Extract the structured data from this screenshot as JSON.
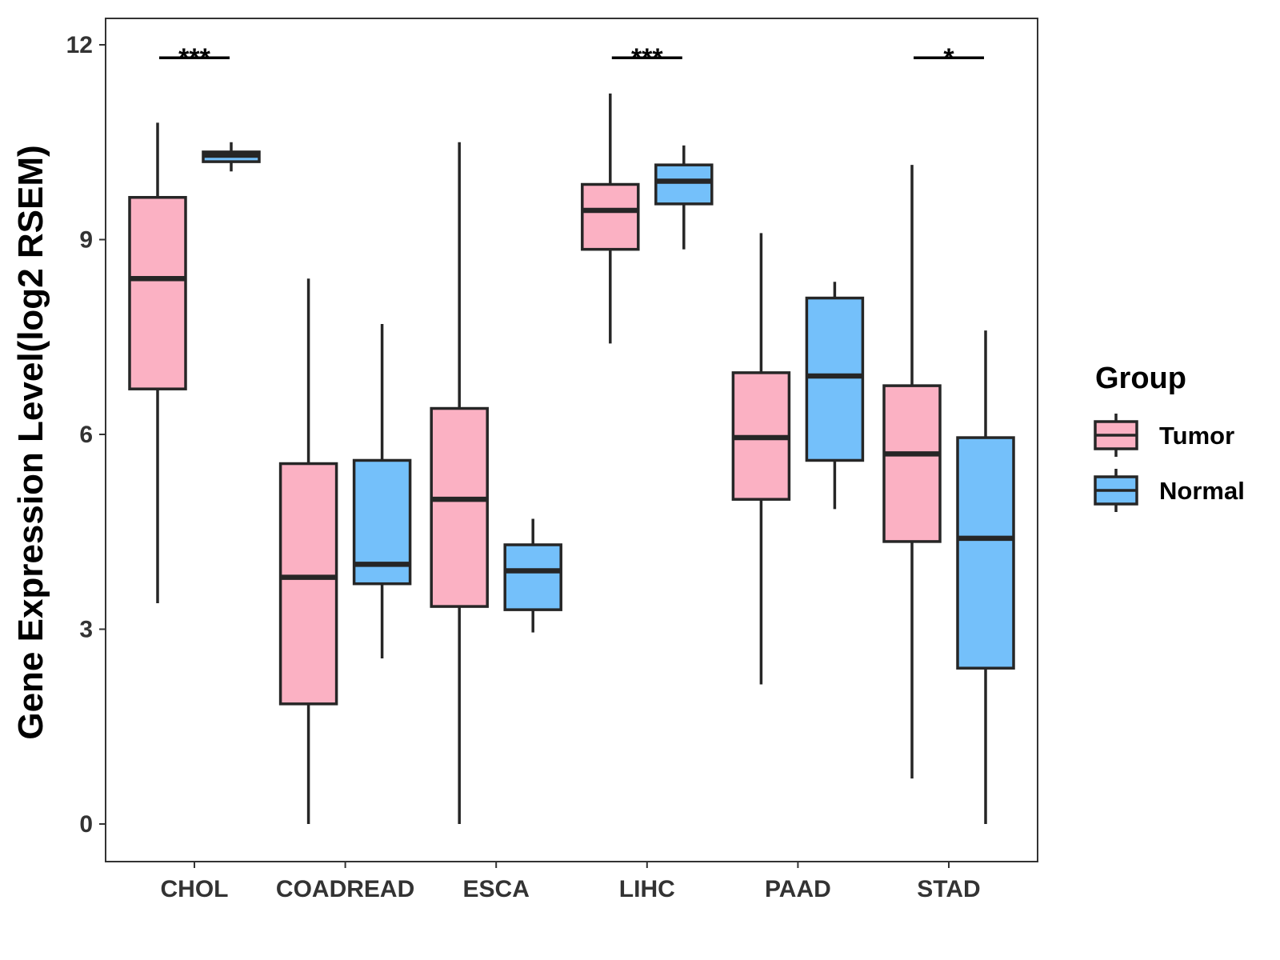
{
  "chart_data": {
    "type": "boxplot",
    "title": "",
    "xlabel": "",
    "ylabel": "Gene Expression Level(log2 RSEM)",
    "ylim": [
      -0.5,
      12.5
    ],
    "yticks": [
      0,
      3,
      6,
      9,
      12
    ],
    "ytick_labels": [
      "0",
      "3",
      "6",
      "9",
      "12"
    ],
    "categories": [
      "CHOL",
      "COADREAD",
      "ESCA",
      "LIHC",
      "PAAD",
      "STAD"
    ],
    "legend": {
      "title": "Group",
      "position": "right",
      "entries": [
        {
          "name": "Tumor",
          "color": "#FBB1C3"
        },
        {
          "name": "Normal",
          "color": "#74C0FA"
        }
      ]
    },
    "series": [
      {
        "name": "Tumor",
        "color": "#FBB1C3",
        "boxes": [
          {
            "category": "CHOL",
            "min": 3.4,
            "q1": 6.7,
            "median": 8.4,
            "q3": 9.65,
            "max": 10.8
          },
          {
            "category": "COADREAD",
            "min": 0.0,
            "q1": 1.85,
            "median": 3.8,
            "q3": 5.55,
            "max": 8.4
          },
          {
            "category": "ESCA",
            "min": 0.0,
            "q1": 3.35,
            "median": 5.0,
            "q3": 6.4,
            "max": 10.5
          },
          {
            "category": "LIHC",
            "min": 7.4,
            "q1": 8.85,
            "median": 9.45,
            "q3": 9.85,
            "max": 11.25
          },
          {
            "category": "PAAD",
            "min": 2.15,
            "q1": 5.0,
            "median": 5.95,
            "q3": 6.95,
            "max": 9.1
          },
          {
            "category": "STAD",
            "min": 0.7,
            "q1": 4.35,
            "median": 5.7,
            "q3": 6.75,
            "max": 10.15
          }
        ]
      },
      {
        "name": "Normal",
        "color": "#74C0FA",
        "boxes": [
          {
            "category": "CHOL",
            "min": 10.05,
            "q1": 10.2,
            "median": 10.3,
            "q3": 10.35,
            "max": 10.5
          },
          {
            "category": "COADREAD",
            "min": 2.55,
            "q1": 3.7,
            "median": 4.0,
            "q3": 5.6,
            "max": 7.7
          },
          {
            "category": "ESCA",
            "min": 2.95,
            "q1": 3.3,
            "median": 3.9,
            "q3": 4.3,
            "max": 4.7
          },
          {
            "category": "LIHC",
            "min": 8.85,
            "q1": 9.55,
            "median": 9.9,
            "q3": 10.15,
            "max": 10.45
          },
          {
            "category": "PAAD",
            "min": 4.85,
            "q1": 5.6,
            "median": 6.9,
            "q3": 8.1,
            "max": 8.35
          },
          {
            "category": "STAD",
            "min": 0.0,
            "q1": 2.4,
            "median": 4.4,
            "q3": 5.95,
            "max": 7.6
          }
        ]
      }
    ],
    "significance": [
      {
        "category": "CHOL",
        "y": 11.8,
        "label": "***"
      },
      {
        "category": "LIHC",
        "y": 11.8,
        "label": "***"
      },
      {
        "category": "STAD",
        "y": 11.8,
        "label": "*"
      }
    ],
    "grid": false
  }
}
